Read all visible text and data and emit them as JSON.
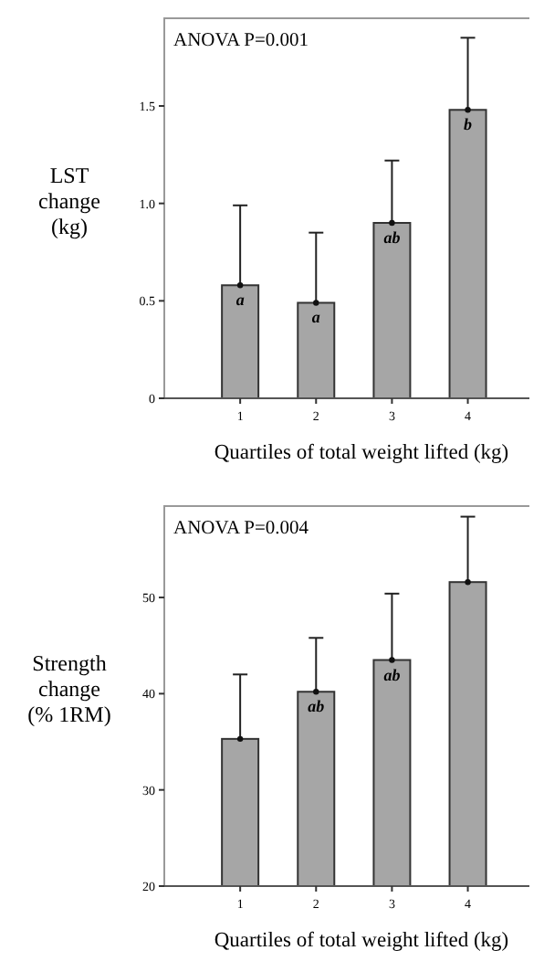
{
  "chart_data": [
    {
      "type": "bar",
      "ylabel": "LST\nchange\n(kg)",
      "xlabel": "Quartiles of total weight lifted (kg)",
      "categories": [
        "1",
        "2",
        "3",
        "4"
      ],
      "values": [
        0.58,
        0.49,
        0.9,
        1.48
      ],
      "color": "#a6a6a6",
      "errors": [
        [
          0.58,
          0.99
        ],
        [
          0.49,
          0.85
        ],
        [
          0.9,
          1.22
        ],
        [
          1.48,
          1.85
        ]
      ],
      "ylim": [
        0,
        1.95
      ],
      "yticks": [
        {
          "value": 0,
          "label": "0"
        },
        {
          "value": 0.5,
          "label": "0.5"
        },
        {
          "value": 1,
          "label": "1.0"
        },
        {
          "value": 1.5,
          "label": "1.5"
        }
      ],
      "annotations": [
        "ANOVA P=0.001",
        {
          "text": "a",
          "x": "1",
          "y": 0.58
        },
        {
          "text": "a",
          "x": "2",
          "y": 0.49
        },
        {
          "text": "ab",
          "x": "3",
          "y": 0.9
        },
        {
          "text": "b",
          "x": "4",
          "y": 1.48
        }
      ]
    },
    {
      "type": "bar",
      "ylabel": "Strength\nchange\n(% 1RM)",
      "xlabel": "Quartiles of total weight lifted (kg)",
      "categories": [
        "1",
        "2",
        "3",
        "4"
      ],
      "values": [
        35.3,
        40.2,
        43.5,
        51.6
      ],
      "color": "#a6a6a6",
      "errors": [
        [
          35.3,
          42
        ],
        [
          40.2,
          45.8
        ],
        [
          43.5,
          50.4
        ],
        [
          51.6,
          58.4
        ]
      ],
      "ylim": [
        20,
        59.5
      ],
      "yticks": [
        20,
        30,
        40,
        50
      ],
      "annotations": [
        "ANOVA P=0.004",
        {
          "text": "ab",
          "x": "2",
          "y": 40.2
        },
        {
          "text": "ab",
          "x": "3",
          "y": 43.5
        }
      ]
    }
  ]
}
